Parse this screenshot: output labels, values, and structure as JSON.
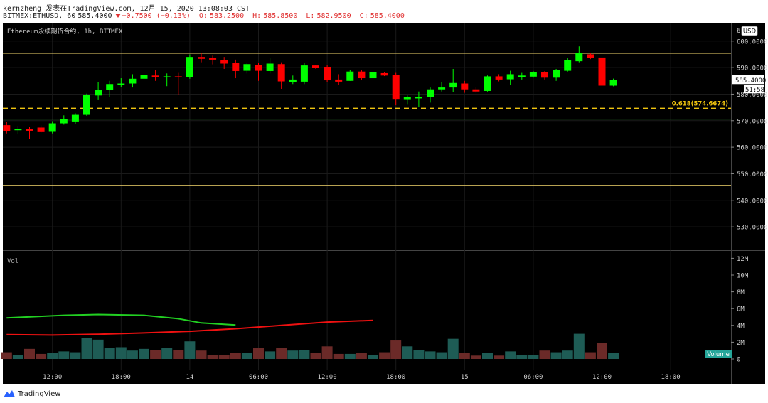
{
  "header": {
    "line1": "kernzheng 发表在TradingView.com, 12月 15, 2020 13:08:03 CST",
    "symbol": "BITMEX:ETHUSD, 60",
    "last": "585.4000",
    "change": "−0.7500 (−0.13%)",
    "o_label": "O:",
    "o_val": "583.2500",
    "h_label": "H:",
    "h_val": "585.8500",
    "l_label": "L:",
    "l_val": "582.9500",
    "c_label": "C:",
    "c_val": "585.4000"
  },
  "colors": {
    "bg": "#000000",
    "up": "#00ff00",
    "down": "#ff0000",
    "grid": "#1a1a1a",
    "yellow_line": "#f5d76e",
    "fib": "#f0c40f",
    "green_line": "#3cb043",
    "vol_up": "#1e5c55",
    "vol_down": "#6b2a28",
    "ma_fast": "#22d022",
    "ma_slow": "#ee1111",
    "volume_badge": "#26a69a"
  },
  "chart_data": {
    "type": "candlestick",
    "title": "Ethereum永续期货合约, 1h, BITMEX",
    "price_axis": {
      "ticks": [
        530,
        540,
        550,
        560,
        570,
        580,
        590,
        600
      ],
      "tick_labels": [
        "530.0000",
        "540.0000",
        "550.0000",
        "560.0000",
        "570.0000",
        "580.0000",
        "590.0000",
        "600.0000"
      ],
      "top_partial": "6",
      "currency": "USD",
      "last_price_label": "585.4000",
      "countdown_label": "51:58",
      "ylim": [
        521.2,
        606.9
      ]
    },
    "time_axis": {
      "labels": [
        "12:00",
        "18:00",
        "14",
        "06:00",
        "12:00",
        "18:00",
        "15",
        "06:00",
        "12:00",
        "18:00"
      ],
      "label_bars": [
        4,
        10,
        16,
        22,
        28,
        34,
        40,
        46,
        52,
        58
      ],
      "bar_count": 67
    },
    "candles": [
      {
        "o": 568.3,
        "h": 569.5,
        "l": 565.2,
        "c": 566.0
      },
      {
        "o": 566.5,
        "h": 568.0,
        "l": 565.0,
        "c": 566.8
      },
      {
        "o": 566.8,
        "h": 567.8,
        "l": 563.0,
        "c": 566.2
      },
      {
        "o": 567.4,
        "h": 568.2,
        "l": 565.5,
        "c": 565.7
      },
      {
        "o": 565.8,
        "h": 569.8,
        "l": 565.2,
        "c": 569.0
      },
      {
        "o": 569.0,
        "h": 572.0,
        "l": 568.5,
        "c": 570.7
      },
      {
        "o": 569.7,
        "h": 572.8,
        "l": 568.8,
        "c": 572.2
      },
      {
        "o": 572.2,
        "h": 580.2,
        "l": 571.8,
        "c": 579.8
      },
      {
        "o": 579.5,
        "h": 584.5,
        "l": 578.0,
        "c": 581.5
      },
      {
        "o": 581.5,
        "h": 585.0,
        "l": 578.8,
        "c": 583.8
      },
      {
        "o": 583.8,
        "h": 586.0,
        "l": 582.8,
        "c": 584.0
      },
      {
        "o": 584.0,
        "h": 587.5,
        "l": 582.5,
        "c": 585.8
      },
      {
        "o": 585.8,
        "h": 589.8,
        "l": 583.8,
        "c": 587.2
      },
      {
        "o": 587.0,
        "h": 589.2,
        "l": 585.0,
        "c": 586.3
      },
      {
        "o": 586.7,
        "h": 587.8,
        "l": 583.0,
        "c": 586.7
      },
      {
        "o": 586.7,
        "h": 588.0,
        "l": 579.8,
        "c": 586.5
      },
      {
        "o": 586.3,
        "h": 595.0,
        "l": 585.8,
        "c": 594.0
      },
      {
        "o": 594.0,
        "h": 595.5,
        "l": 592.0,
        "c": 593.3
      },
      {
        "o": 593.5,
        "h": 594.5,
        "l": 591.2,
        "c": 593.0
      },
      {
        "o": 592.8,
        "h": 594.0,
        "l": 589.5,
        "c": 591.5
      },
      {
        "o": 591.8,
        "h": 593.0,
        "l": 586.0,
        "c": 588.7
      },
      {
        "o": 588.8,
        "h": 591.8,
        "l": 587.8,
        "c": 591.3
      },
      {
        "o": 591.0,
        "h": 591.8,
        "l": 585.0,
        "c": 588.8
      },
      {
        "o": 588.7,
        "h": 593.5,
        "l": 587.8,
        "c": 591.5
      },
      {
        "o": 591.3,
        "h": 592.0,
        "l": 582.0,
        "c": 584.8
      },
      {
        "o": 584.6,
        "h": 587.0,
        "l": 583.8,
        "c": 585.5
      },
      {
        "o": 584.7,
        "h": 591.8,
        "l": 583.8,
        "c": 590.8
      },
      {
        "o": 590.8,
        "h": 591.0,
        "l": 589.5,
        "c": 590.0
      },
      {
        "o": 590.3,
        "h": 591.0,
        "l": 584.5,
        "c": 585.2
      },
      {
        "o": 585.5,
        "h": 587.5,
        "l": 583.5,
        "c": 584.7
      },
      {
        "o": 585.0,
        "h": 589.0,
        "l": 585.0,
        "c": 588.5
      },
      {
        "o": 588.5,
        "h": 589.0,
        "l": 585.2,
        "c": 586.0
      },
      {
        "o": 586.0,
        "h": 588.8,
        "l": 585.2,
        "c": 588.2
      },
      {
        "o": 587.9,
        "h": 588.3,
        "l": 586.8,
        "c": 587.0
      },
      {
        "o": 587.1,
        "h": 588.0,
        "l": 575.8,
        "c": 578.2
      },
      {
        "o": 578.1,
        "h": 579.5,
        "l": 576.0,
        "c": 579.0
      },
      {
        "o": 578.8,
        "h": 581.0,
        "l": 575.2,
        "c": 578.8
      },
      {
        "o": 578.8,
        "h": 582.5,
        "l": 576.8,
        "c": 581.8
      },
      {
        "o": 581.8,
        "h": 584.5,
        "l": 581.0,
        "c": 582.5
      },
      {
        "o": 582.5,
        "h": 589.5,
        "l": 580.8,
        "c": 584.2
      },
      {
        "o": 584.0,
        "h": 585.0,
        "l": 580.5,
        "c": 581.8
      },
      {
        "o": 581.8,
        "h": 582.5,
        "l": 580.5,
        "c": 581.0
      },
      {
        "o": 581.2,
        "h": 587.0,
        "l": 581.0,
        "c": 586.7
      },
      {
        "o": 586.7,
        "h": 587.5,
        "l": 584.8,
        "c": 585.5
      },
      {
        "o": 585.6,
        "h": 588.8,
        "l": 583.5,
        "c": 587.5
      },
      {
        "o": 586.5,
        "h": 588.0,
        "l": 585.5,
        "c": 587.0
      },
      {
        "o": 586.6,
        "h": 588.7,
        "l": 586.2,
        "c": 588.3
      },
      {
        "o": 588.3,
        "h": 588.7,
        "l": 585.5,
        "c": 586.2
      },
      {
        "o": 586.2,
        "h": 589.5,
        "l": 585.0,
        "c": 589.0
      },
      {
        "o": 588.8,
        "h": 593.5,
        "l": 588.5,
        "c": 592.8
      },
      {
        "o": 592.4,
        "h": 598.0,
        "l": 592.0,
        "c": 595.4
      },
      {
        "o": 595.0,
        "h": 595.5,
        "l": 593.2,
        "c": 593.6
      },
      {
        "o": 593.8,
        "h": 594.3,
        "l": 582.5,
        "c": 583.2
      },
      {
        "o": 583.2,
        "h": 585.85,
        "l": 582.95,
        "c": 585.4
      }
    ],
    "levels": [
      {
        "name": "upper",
        "price": 595.4,
        "style": "solid",
        "color": "#f5d76e"
      },
      {
        "name": "fib",
        "price": 574.6674,
        "style": "dashed",
        "color": "#f0c40f",
        "label": "0.618(574.6674)"
      },
      {
        "name": "support",
        "price": 570.6,
        "style": "solid",
        "color": "#3cb043"
      },
      {
        "name": "lower",
        "price": 545.6,
        "style": "solid",
        "color": "#f5d76e"
      }
    ],
    "volume": {
      "label": "Vol",
      "badge": "Volume",
      "axis_ticks": [
        0,
        2,
        4,
        6,
        8,
        10,
        12
      ],
      "axis_labels": [
        "0",
        "2M",
        "4M",
        "6M",
        "8M",
        "10M",
        "12M"
      ],
      "unit": "M",
      "values": [
        0.8,
        0.5,
        1.2,
        0.6,
        0.7,
        0.9,
        0.8,
        2.5,
        2.3,
        1.3,
        1.4,
        1.0,
        1.2,
        1.1,
        1.3,
        1.1,
        2.1,
        1.0,
        0.5,
        0.5,
        0.7,
        0.7,
        1.3,
        0.9,
        1.3,
        1.0,
        1.1,
        0.7,
        1.5,
        0.6,
        0.6,
        0.7,
        0.5,
        0.8,
        2.2,
        1.5,
        1.1,
        0.9,
        0.8,
        2.4,
        0.7,
        0.4,
        0.7,
        0.4,
        0.9,
        0.5,
        0.5,
        1.0,
        0.8,
        1.0,
        3.0,
        0.8,
        1.9,
        0.7
      ],
      "ma_fast": {
        "color": "#22d022",
        "points": [
          [
            0,
            4.9
          ],
          [
            5,
            5.2
          ],
          [
            8,
            5.3
          ],
          [
            12,
            5.2
          ],
          [
            15,
            4.8
          ],
          [
            17,
            4.3
          ],
          [
            20,
            4.05
          ]
        ]
      },
      "ma_slow": {
        "color": "#ee1111",
        "points": [
          [
            0,
            2.9
          ],
          [
            4,
            2.85
          ],
          [
            8,
            2.95
          ],
          [
            12,
            3.1
          ],
          [
            16,
            3.3
          ],
          [
            20,
            3.6
          ],
          [
            24,
            4.0
          ],
          [
            28,
            4.4
          ],
          [
            32,
            4.6
          ]
        ]
      }
    }
  },
  "footer": {
    "logo_text": "TradingView"
  }
}
